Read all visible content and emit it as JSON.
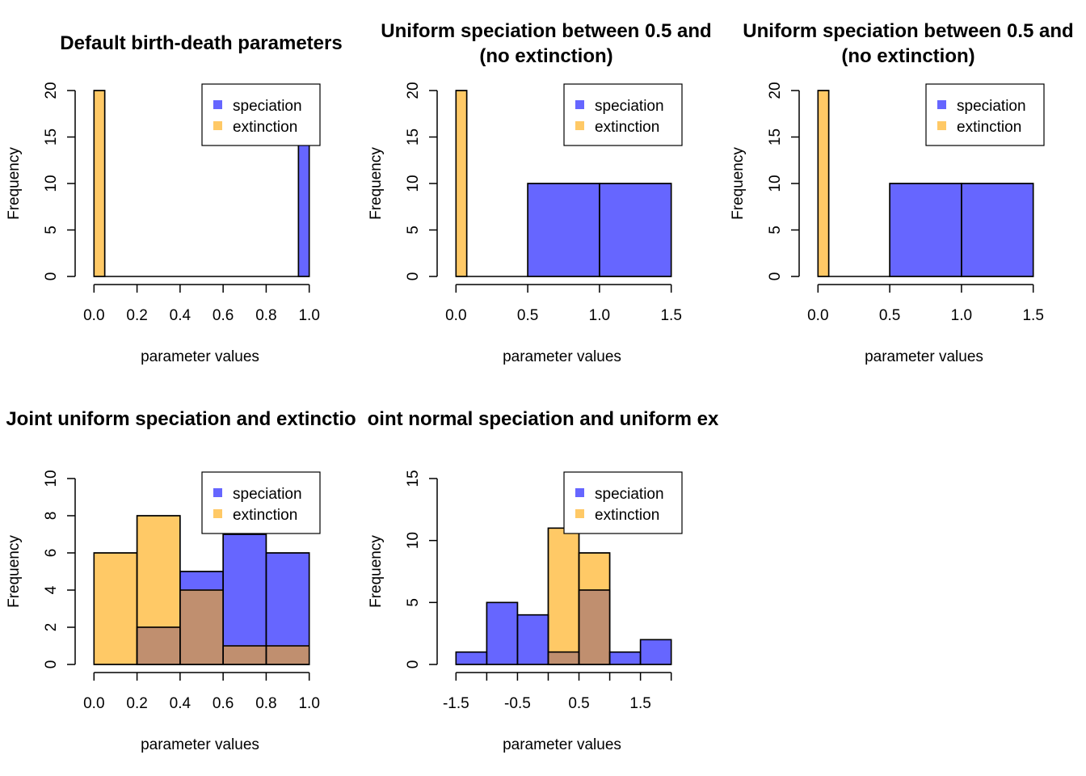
{
  "chart_data": [
    {
      "type": "bar",
      "title": [
        "Default birth-death parameters"
      ],
      "xlabel": "parameter values",
      "ylabel": "Frequency",
      "xlim": [
        -0.05,
        1.05
      ],
      "ylim": [
        0,
        20
      ],
      "xaxis": [
        0,
        1
      ],
      "xticks": [
        "0.0",
        "0.2",
        "0.4",
        "0.6",
        "0.8",
        "1.0"
      ],
      "yticks": [
        "0",
        "5",
        "10",
        "15",
        "20"
      ],
      "legend": {
        "position": "top-right",
        "entries": [
          "speciation",
          "extinction"
        ]
      },
      "series": [
        {
          "name": "speciation",
          "color": "#6666ff",
          "bins": [
            [
              0.95,
              1.0,
              15
            ]
          ]
        },
        {
          "name": "extinction",
          "color": "#ffc966",
          "bins": [
            [
              0.0,
              0.05,
              20
            ],
            [
              0.05,
              0.95,
              0
            ]
          ]
        }
      ]
    },
    {
      "type": "bar",
      "title": [
        "Uniform speciation between 0.5 and",
        "(no extinction)"
      ],
      "xlabel": "parameter values",
      "ylabel": "Frequency",
      "xlim": [
        -0.075,
        1.575
      ],
      "ylim": [
        0,
        20
      ],
      "xaxis": [
        0,
        1.5
      ],
      "xticks": [
        "0.0",
        "0.5",
        "1.0",
        "1.5"
      ],
      "yticks": [
        "0",
        "5",
        "10",
        "15",
        "20"
      ],
      "legend": {
        "position": "top-right",
        "entries": [
          "speciation",
          "extinction"
        ]
      },
      "series": [
        {
          "name": "speciation",
          "color": "#6666ff",
          "bins": [
            [
              0.5,
              1.0,
              10
            ],
            [
              1.0,
              1.5,
              10
            ]
          ]
        },
        {
          "name": "extinction",
          "color": "#ffc966",
          "bins": [
            [
              0.0,
              0.075,
              20
            ],
            [
              0.075,
              0.5,
              0
            ]
          ]
        }
      ]
    },
    {
      "type": "bar",
      "title": [
        "Uniform speciation between 0.5 and",
        "(no extinction)"
      ],
      "xlabel": "parameter values",
      "ylabel": "Frequency",
      "xlim": [
        -0.075,
        1.575
      ],
      "ylim": [
        0,
        20
      ],
      "xaxis": [
        0,
        1.5
      ],
      "xticks": [
        "0.0",
        "0.5",
        "1.0",
        "1.5"
      ],
      "yticks": [
        "0",
        "5",
        "10",
        "15",
        "20"
      ],
      "legend": {
        "position": "top-right",
        "entries": [
          "speciation",
          "extinction"
        ]
      },
      "series": [
        {
          "name": "speciation",
          "color": "#6666ff",
          "bins": [
            [
              0.5,
              1.0,
              10
            ],
            [
              1.0,
              1.5,
              10
            ]
          ]
        },
        {
          "name": "extinction",
          "color": "#ffc966",
          "bins": [
            [
              0.0,
              0.075,
              20
            ],
            [
              0.075,
              0.5,
              0
            ]
          ]
        }
      ]
    },
    {
      "type": "bar",
      "title": [
        "Joint uniform speciation and extinctio"
      ],
      "xlabel": "parameter values",
      "ylabel": "Frequency",
      "xlim": [
        -0.05,
        1.05
      ],
      "ylim": [
        0,
        10
      ],
      "xaxis": [
        0,
        1
      ],
      "xticks": [
        "0.0",
        "0.2",
        "0.4",
        "0.6",
        "0.8",
        "1.0"
      ],
      "yticks": [
        "0",
        "2",
        "4",
        "6",
        "8",
        "10"
      ],
      "legend": {
        "position": "top-right",
        "entries": [
          "speciation",
          "extinction"
        ]
      },
      "series": [
        {
          "name": "speciation",
          "color": "#6666ff",
          "bins": [
            [
              0.2,
              0.4,
              2
            ],
            [
              0.4,
              0.6,
              5
            ],
            [
              0.6,
              0.8,
              7
            ],
            [
              0.8,
              1.0,
              6
            ]
          ]
        },
        {
          "name": "extinction",
          "color": "#ffc966",
          "bins": [
            [
              0.0,
              0.2,
              6
            ],
            [
              0.2,
              0.4,
              8
            ],
            [
              0.4,
              0.6,
              4
            ],
            [
              0.6,
              0.8,
              1
            ],
            [
              0.8,
              1.0,
              1
            ]
          ]
        }
      ]
    },
    {
      "type": "bar",
      "title": [
        "oint normal speciation and uniform ex"
      ],
      "xlabel": "parameter values",
      "ylabel": "Frequency",
      "xlim": [
        -1.675,
        2.175
      ],
      "ylim": [
        0,
        15
      ],
      "xaxis": [
        -1.5,
        2.0
      ],
      "xticks": [
        "-1.5",
        "-0.5",
        "0.5",
        "1.5"
      ],
      "yticks": [
        "0",
        "5",
        "10",
        "15"
      ],
      "legend": {
        "position": "top-right",
        "entries": [
          "speciation",
          "extinction"
        ]
      },
      "series": [
        {
          "name": "speciation",
          "color": "#6666ff",
          "bins": [
            [
              -1.5,
              -1.0,
              1
            ],
            [
              -1.0,
              -0.5,
              5
            ],
            [
              -0.5,
              0.0,
              4
            ],
            [
              0.0,
              0.5,
              1
            ],
            [
              0.5,
              1.0,
              6
            ],
            [
              1.0,
              1.5,
              1
            ],
            [
              1.5,
              2.0,
              2
            ]
          ]
        },
        {
          "name": "extinction",
          "color": "#ffc966",
          "bins": [
            [
              0.0,
              0.5,
              11
            ],
            [
              0.5,
              1.0,
              9
            ]
          ]
        }
      ]
    }
  ]
}
